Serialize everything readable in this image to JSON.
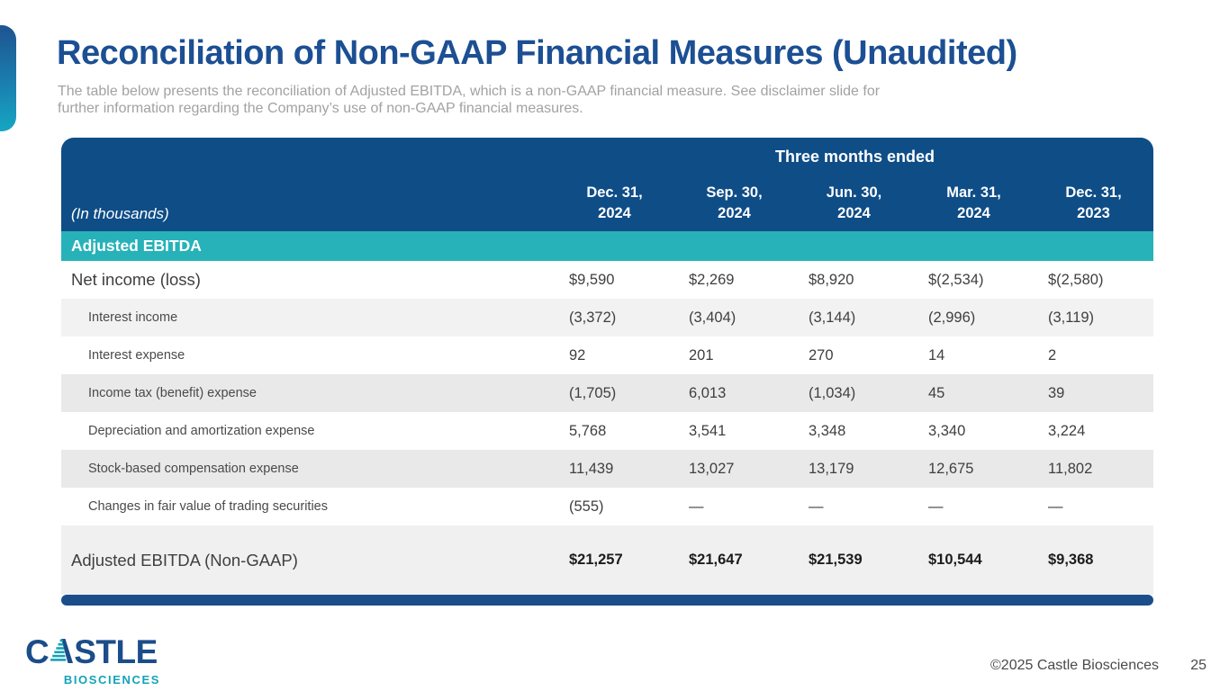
{
  "header": {
    "title": "Reconciliation of Non-GAAP Financial Measures (Unaudited)",
    "subtitle_line1": "The table below presents the reconciliation of Adjusted EBITDA, which is a non-GAAP financial measure. See disclaimer slide for",
    "subtitle_line2": "further information regarding the Company’s use of non-GAAP financial measures."
  },
  "table": {
    "span_header": "Three months ended",
    "units_label": "(In thousands)",
    "columns": [
      {
        "line1": "Dec. 31,",
        "line2": "2024"
      },
      {
        "line1": "Sep. 30,",
        "line2": "2024"
      },
      {
        "line1": "Jun. 30,",
        "line2": "2024"
      },
      {
        "line1": "Mar. 31,",
        "line2": "2024"
      },
      {
        "line1": "Dec. 31,",
        "line2": "2023"
      }
    ],
    "section_header": "Adjusted EBITDA",
    "rows": [
      {
        "label": "Net income (loss)",
        "indent": false,
        "values": [
          "$9,590",
          "$2,269",
          "$8,920",
          "$(2,534)",
          "$(2,580)"
        ]
      },
      {
        "label": "Interest income",
        "indent": true,
        "values": [
          "(3,372)",
          "(3,404)",
          "(3,144)",
          "(2,996)",
          "(3,119)"
        ]
      },
      {
        "label": "Interest expense",
        "indent": true,
        "values": [
          "92",
          "201",
          "270",
          "14",
          "2"
        ]
      },
      {
        "label": "Income tax (benefit) expense",
        "indent": true,
        "values": [
          "(1,705)",
          "6,013",
          "(1,034)",
          "45",
          "39"
        ]
      },
      {
        "label": "Depreciation and amortization expense",
        "indent": true,
        "values": [
          "5,768",
          "3,541",
          "3,348",
          "3,340",
          "3,224"
        ]
      },
      {
        "label": "Stock-based compensation expense",
        "indent": true,
        "values": [
          "11,439",
          "13,027",
          "13,179",
          "12,675",
          "11,802"
        ]
      },
      {
        "label": "Changes in fair value of trading securities",
        "indent": true,
        "values": [
          "(555)",
          "—",
          "—",
          "—",
          "—"
        ]
      }
    ],
    "total_row": {
      "label": "Adjusted EBITDA (Non-GAAP)",
      "values": [
        "$21,257",
        "$21,647",
        "$21,539",
        "$10,544",
        "$9,368"
      ]
    }
  },
  "footer": {
    "logo_part1": "C",
    "logo_part2": "STLE",
    "logo_subtext": "BIOSCIENCES",
    "copyright": "©2025 Castle Biosciences",
    "page_number": "25"
  },
  "colors": {
    "title_blue": "#1c4f93",
    "header_blue": "#0f4d87",
    "brand_teal": "#26b2b8",
    "bar_blue": "#1b4d8a",
    "row_shade_light": "#f2f2f2",
    "row_shade_dark": "#e9e9e9"
  }
}
